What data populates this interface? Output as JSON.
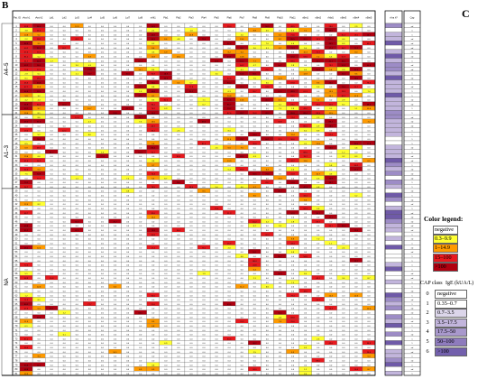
{
  "panel_labels": {
    "left": "B",
    "right": "C"
  },
  "header": {
    "pat_id": "Pat. ID",
    "allergens": [
      "rAra h1",
      "rAra h2",
      "Lol1",
      "Lol2",
      "Lol3",
      "Lol4",
      "Lol5",
      "Lol6",
      "Lol7",
      "Lol8",
      "nAlt1",
      "Pla1",
      "Pla2",
      "Pla3",
      "Pla4",
      "Pla5",
      "Pla6",
      "Pla7",
      "Pla8",
      "Pla9",
      "Pla10",
      "Pla11",
      "nBet1",
      "nBet2",
      "rMal1",
      "nBet3",
      "nBet4",
      "nBet5",
      "rAra h?",
      "Cap"
    ]
  },
  "groups": [
    {
      "label": "A4–5",
      "rows": 21
    },
    {
      "label": "A1–3",
      "rows": 17
    },
    {
      "label": "NA",
      "rows": 43
    }
  ],
  "color_legend": {
    "title": "Color legend:",
    "items": [
      {
        "label": "negative",
        "color": "#ffffff"
      },
      {
        "label": "0.3–9.9",
        "color": "#ffff33"
      },
      {
        "label": "1–14.9",
        "color": "#ff9a00"
      },
      {
        "label": "15–100",
        "color": "#e8191e"
      },
      {
        "label": ">100",
        "color": "#b00010"
      }
    ]
  },
  "cap_legend": {
    "col1": "CAP class",
    "col2": "IgE (kUA/L)",
    "items": [
      {
        "class": "0",
        "label": "negative",
        "color": "#ffffff"
      },
      {
        "class": "1",
        "label": "0.35–0.7",
        "color": "#ffffff"
      },
      {
        "class": "2",
        "label": "0.7–3.5",
        "color": "#dcd6ea"
      },
      {
        "class": "3",
        "label": "3.5–17.5",
        "color": "#c2b5dc"
      },
      {
        "class": "4",
        "label": "17.5–50",
        "color": "#a898cc"
      },
      {
        "class": "5",
        "label": "50–100",
        "color": "#8e7bbd"
      },
      {
        "class": "6",
        "label": ">100",
        "color": "#7360ad"
      }
    ]
  },
  "colors": {
    "yellow": "#ffff33",
    "orange": "#ff9a00",
    "red": "#e8191e",
    "darkred": "#b00010",
    "purple_light": "#c2b5dc",
    "purple_mid": "#9d8cc6",
    "purple_dark": "#6f5aa8"
  }
}
